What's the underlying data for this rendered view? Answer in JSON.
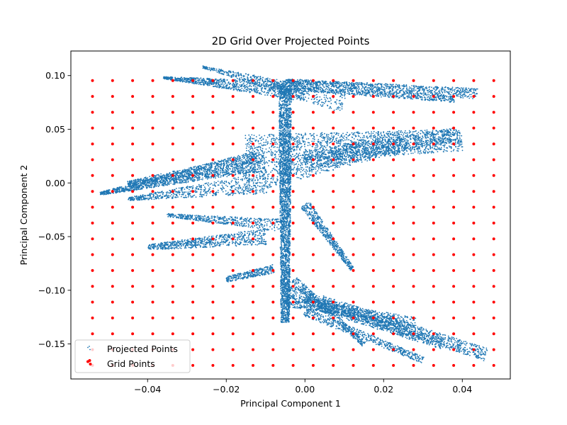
{
  "chart_data": {
    "type": "scatter",
    "title": "2D Grid Over Projected Points",
    "xlabel": "Principal Component 1",
    "ylabel": "Principal Component 2",
    "xlim": [
      -0.0595,
      0.0522
    ],
    "ylim": [
      -0.1826,
      0.1229
    ],
    "xticks": [
      {
        "value": -0.04,
        "label": "−0.04"
      },
      {
        "value": -0.02,
        "label": "−0.02"
      },
      {
        "value": 0.0,
        "label": "0.00"
      },
      {
        "value": 0.02,
        "label": "0.02"
      },
      {
        "value": 0.04,
        "label": "0.04"
      }
    ],
    "yticks": [
      {
        "value": -0.15,
        "label": "−0.15"
      },
      {
        "value": -0.1,
        "label": "−0.10"
      },
      {
        "value": -0.05,
        "label": "−0.05"
      },
      {
        "value": 0.0,
        "label": "0.00"
      },
      {
        "value": 0.05,
        "label": "0.05"
      },
      {
        "value": 0.1,
        "label": "0.10"
      }
    ],
    "grid": false,
    "legend_position": "lower-left",
    "series": [
      {
        "name": "Projected Points",
        "color": "#1f77b4",
        "marker_size": "small",
        "clusters": [
          {
            "type": "wedge",
            "from": [
              -0.036,
              0.098
            ],
            "to": [
              0.0,
              0.085
            ],
            "w0": 0.002,
            "w1": 0.018,
            "n": 900
          },
          {
            "type": "wedge",
            "from": [
              -0.005,
              0.095
            ],
            "to": [
              0.044,
              0.083
            ],
            "w0": 0.004,
            "w1": 0.01,
            "n": 900
          },
          {
            "type": "wedge",
            "from": [
              -0.008,
              0.09
            ],
            "to": [
              0.038,
              0.078
            ],
            "w0": 0.005,
            "w1": 0.006,
            "n": 700
          },
          {
            "type": "wedge",
            "from": [
              -0.026,
              0.108
            ],
            "to": [
              0.01,
              0.075
            ],
            "w0": 0.002,
            "w1": 0.02,
            "n": 500
          },
          {
            "type": "wedge",
            "from": [
              -0.052,
              -0.01
            ],
            "to": [
              -0.012,
              0.02
            ],
            "w0": 0.003,
            "w1": 0.02,
            "n": 1200
          },
          {
            "type": "wedge",
            "from": [
              -0.045,
              0.0
            ],
            "to": [
              -0.01,
              0.02
            ],
            "w0": 0.003,
            "w1": 0.02,
            "n": 700
          },
          {
            "type": "wedge",
            "from": [
              -0.045,
              -0.015
            ],
            "to": [
              -0.01,
              0.0
            ],
            "w0": 0.003,
            "w1": 0.02,
            "n": 600
          },
          {
            "type": "wedge",
            "from": [
              -0.04,
              -0.06
            ],
            "to": [
              -0.01,
              -0.05
            ],
            "w0": 0.005,
            "w1": 0.015,
            "n": 700
          },
          {
            "type": "wedge",
            "from": [
              -0.035,
              -0.03
            ],
            "to": [
              -0.005,
              -0.04
            ],
            "w0": 0.003,
            "w1": 0.012,
            "n": 500
          },
          {
            "type": "wedge",
            "from": [
              -0.015,
              0.03
            ],
            "to": [
              0.04,
              0.04
            ],
            "w0": 0.03,
            "w1": 0.02,
            "n": 1500
          },
          {
            "type": "wedge",
            "from": [
              0.0,
              0.02
            ],
            "to": [
              0.038,
              0.045
            ],
            "w0": 0.02,
            "w1": 0.012,
            "n": 900
          },
          {
            "type": "wedge",
            "from": [
              -0.015,
              0.0
            ],
            "to": [
              0.025,
              0.04
            ],
            "w0": 0.02,
            "w1": 0.02,
            "n": 700
          },
          {
            "type": "wedge",
            "from": [
              -0.005,
              0.09
            ],
            "to": [
              -0.005,
              -0.13
            ],
            "w0": 0.012,
            "w1": 0.008,
            "n": 2600
          },
          {
            "type": "wedge",
            "from": [
              0.0,
              -0.02
            ],
            "to": [
              0.012,
              -0.08
            ],
            "w0": 0.01,
            "w1": 0.004,
            "n": 500
          },
          {
            "type": "wedge",
            "from": [
              -0.008,
              -0.08
            ],
            "to": [
              -0.02,
              -0.09
            ],
            "w0": 0.008,
            "w1": 0.005,
            "n": 300
          },
          {
            "type": "wedge",
            "from": [
              -0.005,
              -0.1
            ],
            "to": [
              0.046,
              -0.16
            ],
            "w0": 0.012,
            "w1": 0.012,
            "n": 1200
          },
          {
            "type": "wedge",
            "from": [
              0.0,
              -0.11
            ],
            "to": [
              0.035,
              -0.15
            ],
            "w0": 0.01,
            "w1": 0.01,
            "n": 700
          },
          {
            "type": "wedge",
            "from": [
              0.0,
              -0.12
            ],
            "to": [
              0.03,
              -0.165
            ],
            "w0": 0.008,
            "w1": 0.006,
            "n": 500
          },
          {
            "type": "wedge",
            "from": [
              -0.005,
              -0.11
            ],
            "to": [
              0.028,
              -0.13
            ],
            "w0": 0.01,
            "w1": 0.01,
            "n": 600
          },
          {
            "type": "wedge",
            "from": [
              -0.003,
              -0.09
            ],
            "to": [
              0.015,
              -0.15
            ],
            "w0": 0.008,
            "w1": 0.005,
            "n": 400
          }
        ]
      },
      {
        "name": "Grid Points",
        "color": "#ff0000",
        "marker_size": "medium",
        "grid": {
          "x_start": -0.054,
          "x_step": 0.0051,
          "x_count": 21,
          "y_start": -0.17,
          "y_step": 0.01474,
          "y_count": 19
        }
      }
    ]
  }
}
